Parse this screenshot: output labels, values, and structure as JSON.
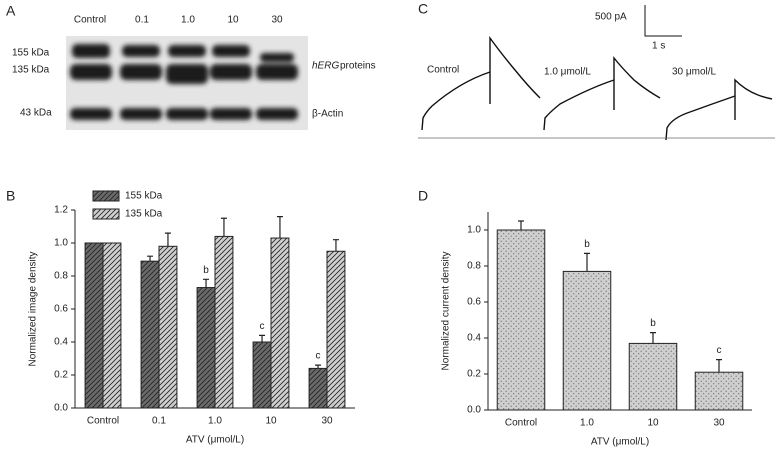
{
  "panel_labels": [
    "A",
    "B",
    "C",
    "D"
  ],
  "blot": {
    "lanes": [
      "Control",
      "0.1",
      "1.0",
      "10",
      "30"
    ],
    "bands": [
      "155 kDa",
      "135 kDa",
      "43 kDa"
    ],
    "protein_name": "hERG",
    "protein_suffix": "proteins",
    "loading_control": "β-Actin"
  },
  "traces": {
    "scale_current": "500 pA",
    "scale_time": "1 s",
    "labels": [
      "Control",
      "1.0 μmol/L",
      "30 μmol/L"
    ]
  },
  "chart_data": [
    {
      "type": "bar",
      "x_label": "ATV (μmol/L)",
      "y_label": "Normalized image density",
      "categories": [
        "Control",
        "0.1",
        "1.0",
        "10",
        "30"
      ],
      "series": [
        {
          "name": "155 kDa",
          "color": "#6a6a6a",
          "pattern": "hatch",
          "values": [
            1.0,
            0.89,
            0.73,
            0.4,
            0.24
          ],
          "errors": [
            null,
            0.03,
            0.05,
            0.04,
            0.02
          ],
          "sig_labels": [
            null,
            null,
            "b",
            "c",
            "c"
          ]
        },
        {
          "name": "135 kDa",
          "color": "#cfcfcf",
          "pattern": "hatch",
          "values": [
            1.0,
            0.98,
            1.04,
            1.03,
            0.95
          ],
          "errors": [
            null,
            0.08,
            0.11,
            0.13,
            0.07
          ],
          "sig_labels": [
            null,
            null,
            null,
            null,
            null
          ]
        }
      ],
      "ylim": [
        0,
        1.2
      ],
      "yticks": [
        {
          "value": 0,
          "label": "0.0"
        },
        0.2,
        0.4,
        0.6,
        0.8,
        {
          "value": 1,
          "label": "1.0"
        },
        1.2
      ],
      "legend": "upper left"
    },
    {
      "type": "bar",
      "x_label": "ATV (μmol/L)",
      "y_label": "Normalized current density",
      "categories": [
        "Control",
        "1.0",
        "10",
        "30"
      ],
      "series": [
        {
          "name": null,
          "color": "#cfcfcf",
          "pattern": "dots",
          "values": [
            1.0,
            0.77,
            0.37,
            0.21
          ],
          "errors": [
            0.05,
            0.1,
            0.06,
            0.07
          ],
          "sig_labels": [
            null,
            "b",
            "b",
            "c"
          ]
        }
      ],
      "ylim": [
        0,
        1.1
      ],
      "yticks": [
        {
          "value": 0,
          "label": "0.0"
        },
        0.2,
        0.4,
        0.6,
        0.8,
        {
          "value": 1,
          "label": "1.0"
        }
      ],
      "legend": null
    }
  ]
}
